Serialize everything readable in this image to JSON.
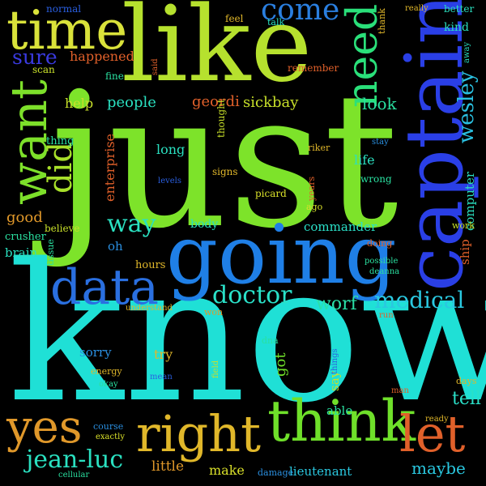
{
  "words": [
    {
      "text": "just",
      "color": "#7de32a",
      "rotated": false
    },
    {
      "text": "know",
      "color": "#1fe0d6",
      "rotated": false
    },
    {
      "text": "like",
      "color": "#b6e12e",
      "rotated": false
    },
    {
      "text": "captain",
      "color": "#2a3fe6",
      "rotated": true
    },
    {
      "text": "going",
      "color": "#1f7fe6",
      "rotated": false
    },
    {
      "text": "time",
      "color": "#d9e23a",
      "rotated": false
    },
    {
      "text": "think",
      "color": "#6fe02a",
      "rotated": false
    },
    {
      "text": "let",
      "color": "#e0602a",
      "rotated": false
    },
    {
      "text": "right",
      "color": "#e0b72a",
      "rotated": false
    },
    {
      "text": "yes",
      "color": "#e0982a",
      "rotated": false
    },
    {
      "text": "data",
      "color": "#2a6fe0",
      "rotated": false
    },
    {
      "text": "want",
      "color": "#7de02a",
      "rotated": true
    },
    {
      "text": "need",
      "color": "#2ae07a",
      "rotated": true
    },
    {
      "text": "did",
      "color": "#a8e02a",
      "rotated": true
    },
    {
      "text": "come",
      "color": "#2a7fe0",
      "rotated": false
    },
    {
      "text": "doctor",
      "color": "#2ae0c8",
      "rotated": false
    },
    {
      "text": "medical",
      "color": "#2ac8e0",
      "rotated": false
    },
    {
      "text": "jean-luc",
      "color": "#2ae0c0",
      "rotated": false
    },
    {
      "text": "sure",
      "color": "#3a3ae0",
      "rotated": false
    },
    {
      "text": "way",
      "color": "#2ae0c0",
      "rotated": false
    },
    {
      "text": "wesley",
      "color": "#2ac0e0",
      "rotated": true
    },
    {
      "text": "worf",
      "color": "#2ae0a8",
      "rotated": false
    },
    {
      "text": "tell",
      "color": "#2ae0c8",
      "rotated": false
    },
    {
      "text": "maybe",
      "color": "#2ac8e0",
      "rotated": false
    },
    {
      "text": "look",
      "color": "#2ae0a0",
      "rotated": false
    },
    {
      "text": "people",
      "color": "#2ae0c0",
      "rotated": false
    },
    {
      "text": "sickbay",
      "color": "#c8e02a",
      "rotated": false
    },
    {
      "text": "geordi",
      "color": "#e0602a",
      "rotated": false
    },
    {
      "text": "help",
      "color": "#c8e02a",
      "rotated": false
    },
    {
      "text": "good",
      "color": "#e0982a",
      "rotated": false
    },
    {
      "text": "life",
      "color": "#2ae0c0",
      "rotated": false
    },
    {
      "text": "long",
      "color": "#2ae0c0",
      "rotated": false
    },
    {
      "text": "commander",
      "color": "#2ae0c8",
      "rotated": false
    },
    {
      "text": "lieutenant",
      "color": "#2ac8e0",
      "rotated": false
    },
    {
      "text": "make",
      "color": "#d9e02a",
      "rotated": false
    },
    {
      "text": "little",
      "color": "#e0982a",
      "rotated": false
    },
    {
      "text": "try",
      "color": "#e0b72a",
      "rotated": false
    },
    {
      "text": "got",
      "color": "#6fe02a",
      "rotated": true
    },
    {
      "text": "body",
      "color": "#2ae0c0",
      "rotated": false
    },
    {
      "text": "happened",
      "color": "#e0602a",
      "rotated": false
    },
    {
      "text": "computer",
      "color": "#2ae0c0",
      "rotated": true
    },
    {
      "text": "ship",
      "color": "#e0602a",
      "rotated": true
    },
    {
      "text": "enterprise",
      "color": "#e0602a",
      "rotated": true
    },
    {
      "text": "brain",
      "color": "#2ae0c0",
      "rotated": false
    },
    {
      "text": "oh",
      "color": "#2a8fe0",
      "rotated": false
    },
    {
      "text": "sorry",
      "color": "#2a8fe0",
      "rotated": false
    },
    {
      "text": "say",
      "color": "#c8e02a",
      "rotated": true
    },
    {
      "text": "able",
      "color": "#2ae0a0",
      "rotated": false
    },
    {
      "text": "crusher",
      "color": "#2ae0a0",
      "rotated": false
    },
    {
      "text": "hours",
      "color": "#e0b72a",
      "rotated": false
    },
    {
      "text": "thing",
      "color": "#2ae0a0",
      "rotated": false
    },
    {
      "text": "kind",
      "color": "#2ae0c0",
      "rotated": false
    },
    {
      "text": "better",
      "color": "#2ae0c0",
      "rotated": false
    },
    {
      "text": "fine",
      "color": "#2ae0a0",
      "rotated": false
    },
    {
      "text": "feel",
      "color": "#e0b72a",
      "rotated": false
    },
    {
      "text": "normal",
      "color": "#2a5fe0",
      "rotated": false
    },
    {
      "text": "talk",
      "color": "#2ae0c0",
      "rotated": false
    },
    {
      "text": "thank",
      "color": "#e0b72a",
      "rotated": true
    },
    {
      "text": "really",
      "color": "#e0b72a",
      "rotated": false
    },
    {
      "text": "away",
      "color": "#2ae0c0",
      "rotated": true
    },
    {
      "text": "remember",
      "color": "#e0602a",
      "rotated": false
    },
    {
      "text": "said",
      "color": "#e0602a",
      "rotated": true
    },
    {
      "text": "scan",
      "color": "#c8e02a",
      "rotated": false
    },
    {
      "text": "thought",
      "color": "#c8e02a",
      "rotated": true
    },
    {
      "text": "riker",
      "color": "#e0b72a",
      "rotated": false
    },
    {
      "text": "stay",
      "color": "#2a8fe0",
      "rotated": false
    },
    {
      "text": "signs",
      "color": "#e0b72a",
      "rotated": false
    },
    {
      "text": "wrong",
      "color": "#2ae0a0",
      "rotated": false
    },
    {
      "text": "levels",
      "color": "#2a5fe0",
      "rotated": false
    },
    {
      "text": "picard",
      "color": "#d9e02a",
      "rotated": false
    },
    {
      "text": "years",
      "color": "#e0602a",
      "rotated": true
    },
    {
      "text": "ago",
      "color": "#d9e02a",
      "rotated": false
    },
    {
      "text": "believe",
      "color": "#c8e02a",
      "rotated": false
    },
    {
      "text": "tissue",
      "color": "#2ae0a0",
      "rotated": true
    },
    {
      "text": "doing",
      "color": "#e0602a",
      "rotated": false
    },
    {
      "text": "work",
      "color": "#c8e02a",
      "rotated": false
    },
    {
      "text": "possible",
      "color": "#2ae0a0",
      "rotated": false
    },
    {
      "text": "deanna",
      "color": "#2ae0a0",
      "rotated": false
    },
    {
      "text": "understand",
      "color": "#e0b72a",
      "rotated": false
    },
    {
      "text": "won",
      "color": "#e0982a",
      "rotated": false
    },
    {
      "text": "run",
      "color": "#e0602a",
      "rotated": false
    },
    {
      "text": "dna",
      "color": "#2ae0a0",
      "rotated": false
    },
    {
      "text": "field",
      "color": "#c8e02a",
      "rotated": true
    },
    {
      "text": "things",
      "color": "#2a5fe0",
      "rotated": true
    },
    {
      "text": "energy",
      "color": "#e0b72a",
      "rotated": false
    },
    {
      "text": "okay",
      "color": "#2ae0a0",
      "rotated": false
    },
    {
      "text": "mean",
      "color": "#2a5fe0",
      "rotated": false
    },
    {
      "text": "days",
      "color": "#e0b72a",
      "rotated": false
    },
    {
      "text": "man",
      "color": "#e0602a",
      "rotated": false
    },
    {
      "text": "course",
      "color": "#2a8fe0",
      "rotated": false
    },
    {
      "text": "exactly",
      "color": "#d9e02a",
      "rotated": false
    },
    {
      "text": "ready",
      "color": "#e0b72a",
      "rotated": false
    },
    {
      "text": "cellular",
      "color": "#2ae0a0",
      "rotated": false
    },
    {
      "text": "damage",
      "color": "#2a8fe0",
      "rotated": false
    },
    {
      "text": "lot",
      "color": "#e0b72a",
      "rotated": true
    }
  ]
}
